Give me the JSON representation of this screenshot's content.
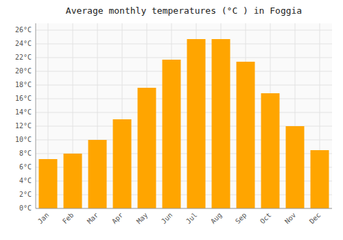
{
  "chart_data": {
    "type": "bar",
    "title": "Average monthly temperatures (°C ) in Foggia",
    "categories": [
      "Jan",
      "Feb",
      "Mar",
      "Apr",
      "May",
      "Jun",
      "Jul",
      "Aug",
      "Sep",
      "Oct",
      "Nov",
      "Dec"
    ],
    "values": [
      7.2,
      8.0,
      10.0,
      13.0,
      17.6,
      21.7,
      24.7,
      24.7,
      21.4,
      16.8,
      12.0,
      8.5
    ],
    "color": "#FFA500",
    "ylim": [
      0,
      27
    ],
    "yticks": [
      {
        "value": 0,
        "label": "0°C"
      },
      {
        "value": 2,
        "label": "2°C"
      },
      {
        "value": 4,
        "label": "4°C"
      },
      {
        "value": 6,
        "label": "6°C"
      },
      {
        "value": 8,
        "label": "8°C"
      },
      {
        "value": 10,
        "label": "10°C"
      },
      {
        "value": 12,
        "label": "12°C"
      },
      {
        "value": 14,
        "label": "14°C"
      },
      {
        "value": 16,
        "label": "16°C"
      },
      {
        "value": 18,
        "label": "18°C"
      },
      {
        "value": 20,
        "label": "20°C"
      },
      {
        "value": 22,
        "label": "22°C"
      },
      {
        "value": 24,
        "label": "24°C"
      },
      {
        "value": 26,
        "label": "26°C"
      }
    ],
    "grid": true
  }
}
